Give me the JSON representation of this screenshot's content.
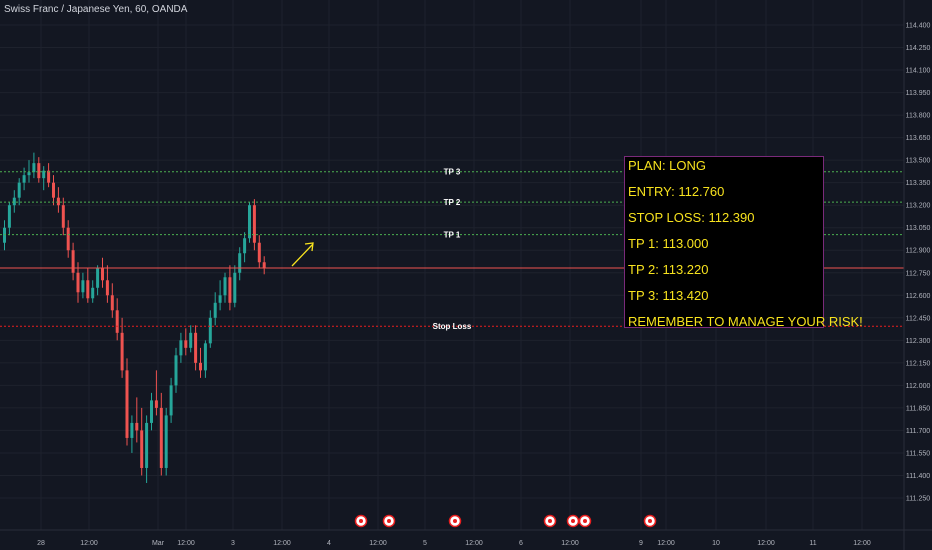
{
  "chart": {
    "symbol_title": "Swiss Franc / Japanese Yen, 60, OANDA",
    "price_axis": [
      "114.400",
      "114.250",
      "114.100",
      "113.950",
      "113.800",
      "113.650",
      "113.500",
      "113.350",
      "113.200",
      "113.050",
      "112.900",
      "112.750",
      "112.600",
      "112.450",
      "112.300",
      "112.150",
      "112.000",
      "111.850",
      "111.700",
      "111.550",
      "111.400",
      "111.250"
    ],
    "time_axis": [
      "28",
      "12:00",
      "Mar",
      "12:00",
      "3",
      "12:00",
      "4",
      "12:00",
      "5",
      "12:00",
      "6",
      "12:00",
      "9",
      "12:00",
      "10",
      "12:00",
      "11",
      "12:00"
    ],
    "levels": [
      {
        "label": "TP 3",
        "price": 113.423,
        "tag": "113.423",
        "color": "#4caf50"
      },
      {
        "label": "TP 2",
        "price": 113.22,
        "tag": "113.220",
        "color": "#4caf50"
      },
      {
        "label": "TP 1",
        "price": 113.004,
        "tag": "113.004",
        "color": "#4caf50"
      },
      {
        "label": "Stop Loss",
        "price": 112.394,
        "tag": "112.394",
        "color": "#e91e1e"
      }
    ],
    "current_price": {
      "value": "112.782",
      "countdown": "30:58",
      "color": "#ef5350"
    },
    "colors": {
      "up": "#26a69a",
      "down": "#ef5350",
      "arrow": "#f7e21e",
      "box_border": "#7a2a7a",
      "text": "#f7e21e"
    }
  },
  "plan": {
    "lines": [
      "PLAN: LONG",
      "ENTRY: 112.760",
      "STOP LOSS: 112.390",
      "TP 1: 113.000",
      "TP 2: 113.220",
      "TP 3: 113.420",
      "REMEMBER TO MANAGE YOUR RISK!"
    ]
  },
  "events": {
    "icons": [
      "event-flag-icon",
      "event-flag-icon",
      "event-flag-icon",
      "event-flag-icon",
      "event-flag-icon",
      "event-flag-icon",
      "event-flag-icon"
    ]
  }
}
